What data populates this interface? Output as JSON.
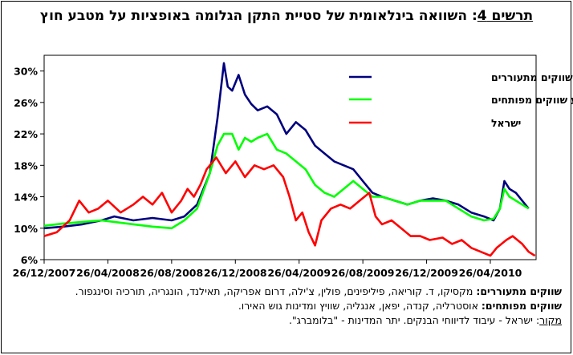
{
  "title": {
    "label": "תרשים 4",
    "text": ": השוואה בינלאומית של סטיית התקן הגלומה באופציות על מטבע חוץ"
  },
  "chart_data": {
    "type": "line",
    "x_ticks": [
      "26/12/2007",
      "26/04/2008",
      "26/08/2008",
      "26/12/2008",
      "26/04/2009",
      "26/08/2009",
      "26/12/2009",
      "26/04/2010"
    ],
    "y_ticks": [
      "6%",
      "10%",
      "14%",
      "18%",
      "22%",
      "26%",
      "30%"
    ],
    "ylim": [
      6,
      32
    ],
    "xlim": [
      0,
      7.5
    ],
    "grid": false,
    "legend_position": "top-right",
    "series": [
      {
        "name": "ממוצע שווקים מתעוררים",
        "color": "#00007f",
        "points": [
          [
            0,
            10.0
          ],
          [
            0.3,
            10.2
          ],
          [
            0.6,
            10.5
          ],
          [
            0.9,
            11.0
          ],
          [
            1.1,
            11.5
          ],
          [
            1.4,
            11.0
          ],
          [
            1.7,
            11.3
          ],
          [
            2.0,
            11.0
          ],
          [
            2.2,
            11.5
          ],
          [
            2.4,
            13.0
          ],
          [
            2.6,
            17.0
          ],
          [
            2.72,
            24.0
          ],
          [
            2.82,
            31.0
          ],
          [
            2.88,
            28.0
          ],
          [
            2.95,
            27.5
          ],
          [
            3.05,
            29.5
          ],
          [
            3.15,
            27.0
          ],
          [
            3.25,
            25.8
          ],
          [
            3.35,
            25.0
          ],
          [
            3.5,
            25.5
          ],
          [
            3.65,
            24.5
          ],
          [
            3.8,
            22.0
          ],
          [
            3.95,
            23.5
          ],
          [
            4.1,
            22.5
          ],
          [
            4.25,
            20.5
          ],
          [
            4.4,
            19.5
          ],
          [
            4.55,
            18.5
          ],
          [
            4.7,
            18.0
          ],
          [
            4.85,
            17.5
          ],
          [
            5.0,
            16.0
          ],
          [
            5.15,
            14.5
          ],
          [
            5.3,
            14.0
          ],
          [
            5.5,
            13.5
          ],
          [
            5.7,
            13.0
          ],
          [
            5.9,
            13.5
          ],
          [
            6.1,
            13.8
          ],
          [
            6.3,
            13.5
          ],
          [
            6.5,
            13.0
          ],
          [
            6.7,
            12.0
          ],
          [
            6.9,
            11.5
          ],
          [
            7.05,
            11.0
          ],
          [
            7.15,
            12.5
          ],
          [
            7.22,
            16.0
          ],
          [
            7.3,
            15.0
          ],
          [
            7.4,
            14.5
          ],
          [
            7.5,
            13.5
          ],
          [
            7.6,
            12.5
          ]
        ]
      },
      {
        "name": "ממוצע שווקים מפותחים",
        "color": "#00ff00",
        "points": [
          [
            0,
            10.3
          ],
          [
            0.3,
            10.6
          ],
          [
            0.6,
            10.8
          ],
          [
            0.9,
            11.0
          ],
          [
            1.1,
            10.8
          ],
          [
            1.4,
            10.5
          ],
          [
            1.7,
            10.2
          ],
          [
            2.0,
            10.0
          ],
          [
            2.2,
            11.0
          ],
          [
            2.4,
            12.5
          ],
          [
            2.6,
            17.0
          ],
          [
            2.72,
            20.5
          ],
          [
            2.82,
            22.0
          ],
          [
            2.95,
            22.0
          ],
          [
            3.05,
            20.0
          ],
          [
            3.15,
            21.5
          ],
          [
            3.25,
            21.0
          ],
          [
            3.35,
            21.5
          ],
          [
            3.5,
            22.0
          ],
          [
            3.65,
            20.0
          ],
          [
            3.8,
            19.5
          ],
          [
            3.95,
            18.5
          ],
          [
            4.1,
            17.5
          ],
          [
            4.25,
            15.5
          ],
          [
            4.4,
            14.5
          ],
          [
            4.55,
            14.0
          ],
          [
            4.7,
            15.0
          ],
          [
            4.85,
            16.0
          ],
          [
            5.0,
            15.0
          ],
          [
            5.15,
            14.0
          ],
          [
            5.3,
            14.0
          ],
          [
            5.5,
            13.5
          ],
          [
            5.7,
            13.0
          ],
          [
            5.9,
            13.5
          ],
          [
            6.1,
            13.5
          ],
          [
            6.3,
            13.5
          ],
          [
            6.5,
            12.5
          ],
          [
            6.7,
            11.5
          ],
          [
            6.9,
            11.0
          ],
          [
            7.05,
            11.2
          ],
          [
            7.15,
            12.5
          ],
          [
            7.22,
            15.0
          ],
          [
            7.3,
            14.0
          ],
          [
            7.4,
            13.5
          ],
          [
            7.5,
            13.0
          ],
          [
            7.6,
            12.5
          ]
        ]
      },
      {
        "name": "ישראל",
        "color": "#ff0000",
        "points": [
          [
            0,
            9.0
          ],
          [
            0.2,
            9.5
          ],
          [
            0.4,
            11.0
          ],
          [
            0.55,
            13.5
          ],
          [
            0.7,
            12.0
          ],
          [
            0.85,
            12.5
          ],
          [
            1.0,
            13.5
          ],
          [
            1.2,
            12.0
          ],
          [
            1.4,
            13.0
          ],
          [
            1.55,
            14.0
          ],
          [
            1.7,
            13.0
          ],
          [
            1.85,
            14.5
          ],
          [
            2.0,
            12.0
          ],
          [
            2.15,
            13.5
          ],
          [
            2.25,
            15.0
          ],
          [
            2.35,
            14.0
          ],
          [
            2.45,
            15.5
          ],
          [
            2.55,
            17.5
          ],
          [
            2.7,
            19.0
          ],
          [
            2.85,
            17.0
          ],
          [
            3.0,
            18.5
          ],
          [
            3.15,
            16.5
          ],
          [
            3.3,
            18.0
          ],
          [
            3.45,
            17.5
          ],
          [
            3.6,
            18.0
          ],
          [
            3.75,
            16.5
          ],
          [
            3.85,
            14.0
          ],
          [
            3.95,
            11.0
          ],
          [
            4.05,
            12.0
          ],
          [
            4.15,
            9.5
          ],
          [
            4.25,
            7.8
          ],
          [
            4.35,
            11.0
          ],
          [
            4.5,
            12.5
          ],
          [
            4.65,
            13.0
          ],
          [
            4.8,
            12.5
          ],
          [
            4.95,
            13.5
          ],
          [
            5.1,
            14.5
          ],
          [
            5.2,
            11.5
          ],
          [
            5.3,
            10.5
          ],
          [
            5.45,
            11.0
          ],
          [
            5.6,
            10.0
          ],
          [
            5.75,
            9.0
          ],
          [
            5.9,
            9.0
          ],
          [
            6.05,
            8.5
          ],
          [
            6.25,
            8.8
          ],
          [
            6.4,
            8.0
          ],
          [
            6.55,
            8.5
          ],
          [
            6.7,
            7.5
          ],
          [
            6.85,
            7.0
          ],
          [
            7.0,
            6.5
          ],
          [
            7.1,
            7.5
          ],
          [
            7.25,
            8.5
          ],
          [
            7.35,
            9.0
          ],
          [
            7.5,
            8.0
          ],
          [
            7.6,
            7.0
          ],
          [
            7.7,
            6.5
          ]
        ]
      }
    ]
  },
  "notes": {
    "em_label": "שווקים מתעוררים:",
    "em_text": " מקסיקו, ד. קוריאה, פיליפינים, פולין, צ'ילה, דרום אפריקה, תאילנד, הונגריה, תורכיה וסינגפור.",
    "dm_label": "שווקים מפותחים:",
    "dm_text": " אוסטרליה, קנדה, יפאן, אנגליה, שוויץ ומדינות גוש האירו.",
    "src_label": "מקור",
    "src_text": ": ישראל - עיבוד לדיווחי הבנקים. יתר המדינות - \"בלומברג\"."
  }
}
